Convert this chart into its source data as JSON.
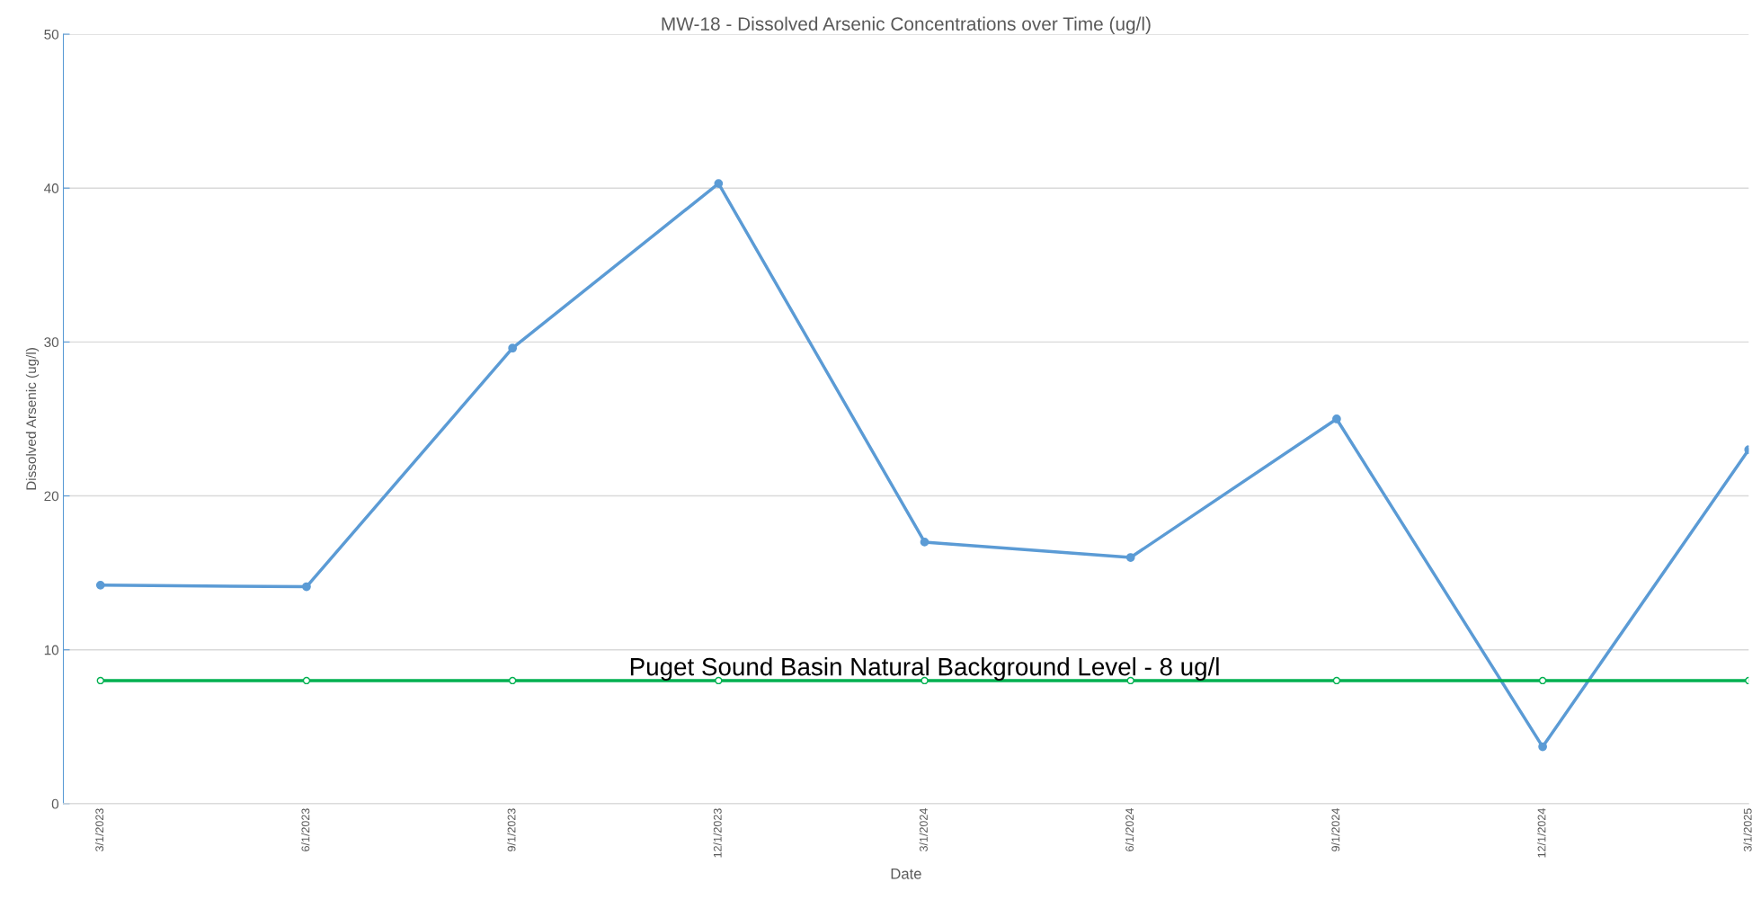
{
  "chart_data": {
    "type": "line",
    "title": "MW-18 - Dissolved Arsenic Concentrations over Time (ug/l)",
    "xlabel": "Date",
    "ylabel": "Dissolved Arsenic (ug/l)",
    "categories": [
      "3/1/2023",
      "6/1/2023",
      "9/1/2023",
      "12/1/2023",
      "3/1/2024",
      "6/1/2024",
      "9/1/2024",
      "12/1/2024",
      "3/1/2025"
    ],
    "series": [
      {
        "color": "#5b9bd5",
        "values": [
          14.2,
          14.1,
          29.6,
          40.3,
          17.0,
          16.0,
          25.0,
          3.7,
          23.0
        ]
      },
      {
        "color": "#00b050",
        "values": [
          8,
          8,
          8,
          8,
          8,
          8,
          8,
          8,
          8
        ]
      }
    ],
    "annotations": [
      {
        "text": "Puget Sound Basin Natural Background Level - 8 ug/l",
        "y": 8
      }
    ],
    "ylim": [
      0,
      50
    ],
    "yticks": [
      0,
      10,
      20,
      30,
      40,
      50
    ],
    "grid": "y",
    "marker": "circle",
    "line_style": "solid"
  }
}
